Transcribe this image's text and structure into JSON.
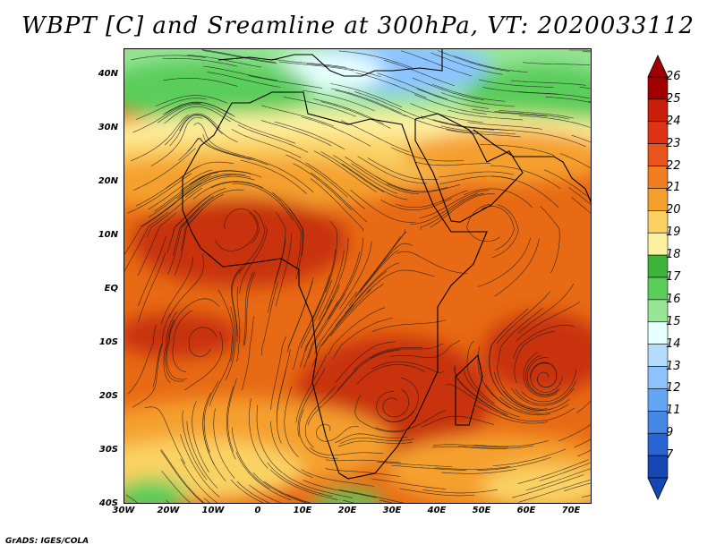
{
  "title": "WBPT [C] and Sreamline at 300hPa, VT: 2020033112",
  "credit": "GrADS: IGES/COLA",
  "lat_labels": [
    "40N",
    "30N",
    "20N",
    "10N",
    "EQ",
    "10S",
    "20S",
    "30S",
    "40S"
  ],
  "lon_labels": [
    "30W",
    "20W",
    "10W",
    "0",
    "10E",
    "20E",
    "30E",
    "40E",
    "50E",
    "60E",
    "70E"
  ],
  "colorbar": {
    "labels": [
      "26",
      "25",
      "24",
      "23",
      "22",
      "21",
      "20",
      "19",
      "18",
      "17",
      "16",
      "15",
      "14",
      "13",
      "12",
      "11",
      "9",
      "7"
    ],
    "colors": [
      "#a00000",
      "#c81e0a",
      "#e03214",
      "#e8551c",
      "#f07d1e",
      "#f5a02d",
      "#fad264",
      "#fff0a0",
      "#3cb43c",
      "#5acd5a",
      "#96e696",
      "#e6ffff",
      "#b4dcff",
      "#8cc3ff",
      "#64a5f5",
      "#4687e6",
      "#2864d2",
      "#1446b4"
    ]
  },
  "map_colors": {
    "ocean_orange": "#e86a14",
    "deep_red": "#c8320a",
    "light_orange": "#f5a02d",
    "yellow": "#fad264",
    "pale_yellow": "#fff0a0",
    "green": "#5acd5a",
    "light_green": "#96e696",
    "blue": "#8cc3ff",
    "cyan": "#e6ffff"
  }
}
